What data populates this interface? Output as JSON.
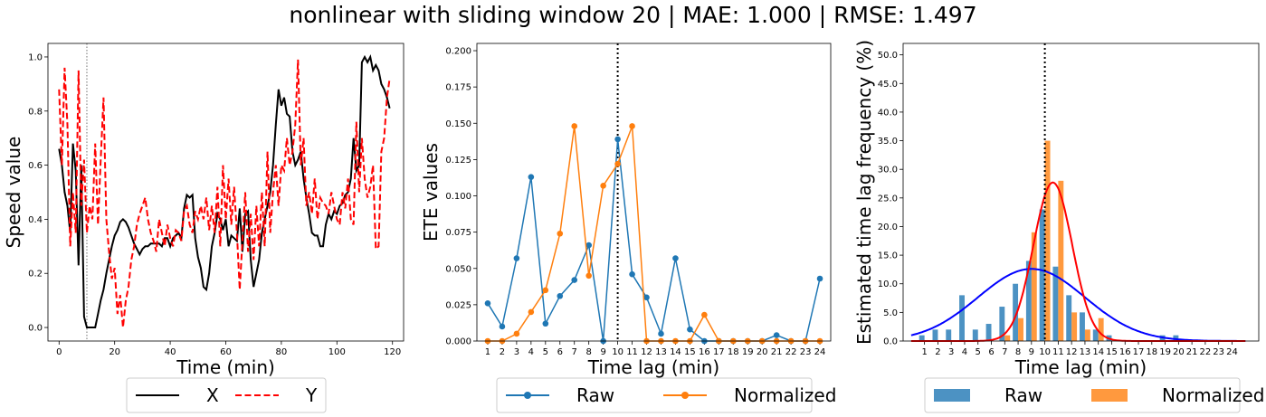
{
  "title": "nonlinear with sliding window 20 | MAE: 1.000 | RMSE: 1.497",
  "chart_data": [
    {
      "type": "line",
      "xlabel": "Time (min)",
      "ylabel": "Speed value",
      "xlim": [
        -4,
        124
      ],
      "ylim": [
        -0.05,
        1.05
      ],
      "xticks": [
        0,
        20,
        40,
        60,
        80,
        100,
        120
      ],
      "yticks": [
        0.0,
        0.2,
        0.4,
        0.6,
        0.8,
        1.0
      ],
      "vline": 10,
      "legend": {
        "placement": "bottom",
        "entries": [
          "X",
          "Y"
        ]
      },
      "series": [
        {
          "name": "X",
          "color": "#000000",
          "style": "solid",
          "x": [
            0,
            1,
            2,
            3,
            4,
            5,
            6,
            7,
            8,
            9,
            10,
            11,
            12,
            13,
            14,
            15,
            16,
            17,
            18,
            19,
            20,
            21,
            22,
            23,
            24,
            25,
            26,
            27,
            28,
            29,
            30,
            31,
            32,
            33,
            34,
            35,
            36,
            37,
            38,
            39,
            40,
            41,
            42,
            43,
            44,
            45,
            46,
            47,
            48,
            49,
            50,
            51,
            52,
            53,
            54,
            55,
            56,
            57,
            58,
            59,
            60,
            61,
            62,
            63,
            64,
            65,
            66,
            67,
            68,
            69,
            70,
            71,
            72,
            73,
            74,
            75,
            76,
            77,
            78,
            79,
            80,
            81,
            82,
            83,
            84,
            85,
            86,
            87,
            88,
            89,
            90,
            91,
            92,
            93,
            94,
            95,
            96,
            97,
            98,
            99,
            100,
            101,
            102,
            103,
            104,
            105,
            106,
            107,
            108,
            109,
            110,
            111,
            112,
            113,
            114,
            115,
            116,
            117,
            118,
            119
          ],
          "y": [
            0.66,
            0.6,
            0.5,
            0.45,
            0.35,
            0.68,
            0.58,
            0.23,
            0.6,
            0.04,
            0.0,
            0.0,
            0.0,
            0.0,
            0.05,
            0.1,
            0.14,
            0.2,
            0.25,
            0.3,
            0.34,
            0.36,
            0.39,
            0.4,
            0.39,
            0.37,
            0.34,
            0.31,
            0.29,
            0.27,
            0.29,
            0.3,
            0.3,
            0.31,
            0.31,
            0.31,
            0.31,
            0.3,
            0.33,
            0.33,
            0.3,
            0.33,
            0.34,
            0.35,
            0.33,
            0.44,
            0.49,
            0.48,
            0.49,
            0.33,
            0.26,
            0.22,
            0.15,
            0.14,
            0.2,
            0.3,
            0.35,
            0.42,
            0.4,
            0.36,
            0.4,
            0.3,
            0.34,
            0.33,
            0.32,
            0.44,
            0.28,
            0.42,
            0.43,
            0.25,
            0.15,
            0.2,
            0.25,
            0.35,
            0.4,
            0.45,
            0.5,
            0.6,
            0.75,
            0.88,
            0.82,
            0.85,
            0.79,
            0.78,
            0.65,
            0.6,
            0.62,
            0.65,
            0.55,
            0.48,
            0.42,
            0.35,
            0.34,
            0.34,
            0.3,
            0.3,
            0.38,
            0.42,
            0.4,
            0.43,
            0.42,
            0.45,
            0.46,
            0.49,
            0.5,
            0.55,
            0.7,
            0.58,
            0.6,
            0.98,
            1.0,
            0.98,
            1.0,
            0.95,
            0.97,
            0.95,
            0.9,
            0.88,
            0.85,
            0.81
          ]
        },
        {
          "name": "Y",
          "color": "#ff0000",
          "style": "dashed",
          "x": [
            0,
            1,
            2,
            3,
            4,
            5,
            6,
            7,
            8,
            9,
            10,
            11,
            12,
            13,
            14,
            15,
            16,
            17,
            18,
            19,
            20,
            21,
            22,
            23,
            24,
            25,
            26,
            27,
            28,
            29,
            30,
            31,
            32,
            33,
            34,
            35,
            36,
            37,
            38,
            39,
            40,
            41,
            42,
            43,
            44,
            45,
            46,
            47,
            48,
            49,
            50,
            51,
            52,
            53,
            54,
            55,
            56,
            57,
            58,
            59,
            60,
            61,
            62,
            63,
            64,
            65,
            66,
            67,
            68,
            69,
            70,
            71,
            72,
            73,
            74,
            75,
            76,
            77,
            78,
            79,
            80,
            81,
            82,
            83,
            84,
            85,
            86,
            87,
            88,
            89,
            90,
            91,
            92,
            93,
            94,
            95,
            96,
            97,
            98,
            99,
            100,
            101,
            102,
            103,
            104,
            105,
            106,
            107,
            108,
            109,
            110,
            111,
            112,
            113,
            114,
            115,
            116,
            117,
            118,
            119
          ],
          "y": [
            0.88,
            0.6,
            0.96,
            0.75,
            0.3,
            0.5,
            0.35,
            0.95,
            0.45,
            0.62,
            0.35,
            0.45,
            0.4,
            0.68,
            0.38,
            0.62,
            0.85,
            0.4,
            0.28,
            0.18,
            0.22,
            0.05,
            0.12,
            0.0,
            0.1,
            0.15,
            0.25,
            0.3,
            0.38,
            0.42,
            0.45,
            0.48,
            0.4,
            0.35,
            0.32,
            0.28,
            0.4,
            0.35,
            0.3,
            0.38,
            0.33,
            0.3,
            0.36,
            0.35,
            0.32,
            0.43,
            0.45,
            0.38,
            0.35,
            0.43,
            0.4,
            0.45,
            0.4,
            0.48,
            0.36,
            0.45,
            0.35,
            0.52,
            0.3,
            0.6,
            0.4,
            0.55,
            0.38,
            0.52,
            0.35,
            0.14,
            0.32,
            0.5,
            0.28,
            0.42,
            0.25,
            0.45,
            0.3,
            0.5,
            0.3,
            0.65,
            0.35,
            0.5,
            0.6,
            0.45,
            0.6,
            0.58,
            0.7,
            0.6,
            0.65,
            0.75,
            0.99,
            0.6,
            0.7,
            0.45,
            0.5,
            0.42,
            0.55,
            0.4,
            0.48,
            0.46,
            0.45,
            0.42,
            0.5,
            0.45,
            0.4,
            0.38,
            0.5,
            0.44,
            0.55,
            0.4,
            0.38,
            0.76,
            0.5,
            0.7,
            0.55,
            0.48,
            0.52,
            0.6,
            0.29,
            0.3,
            0.65,
            0.7,
            0.85,
            0.92
          ]
        }
      ]
    },
    {
      "type": "line",
      "xlabel": "Time lag (min)",
      "ylabel": "ETE values",
      "xlim": [
        0.25,
        24.75
      ],
      "ylim": [
        0.0,
        0.205
      ],
      "xticks": [
        1,
        2,
        3,
        4,
        5,
        6,
        7,
        8,
        9,
        10,
        11,
        12,
        13,
        14,
        15,
        16,
        17,
        18,
        19,
        20,
        21,
        22,
        23,
        24
      ],
      "yticks": [
        0.0,
        0.025,
        0.05,
        0.075,
        0.1,
        0.125,
        0.15,
        0.175,
        0.2
      ],
      "ytick_labels": [
        "0.000",
        "0.025",
        "0.050",
        "0.075",
        "0.100",
        "0.125",
        "0.150",
        "0.175",
        "0.200"
      ],
      "vline": 10,
      "legend": {
        "placement": "bottom",
        "entries": [
          "Raw",
          "Normalized"
        ]
      },
      "x": [
        1,
        2,
        3,
        4,
        5,
        6,
        7,
        8,
        9,
        10,
        11,
        12,
        13,
        14,
        15,
        16,
        17,
        18,
        19,
        20,
        21,
        22,
        23,
        24
      ],
      "series": [
        {
          "name": "Raw",
          "color": "#1f77b4",
          "values": [
            0.026,
            0.01,
            0.057,
            0.113,
            0.012,
            0.031,
            0.042,
            0.066,
            0.0,
            0.139,
            0.046,
            0.03,
            0.005,
            0.057,
            0.008,
            0.0,
            0.0,
            0.0,
            0.0,
            0.0,
            0.004,
            0.0,
            0.0,
            0.043
          ]
        },
        {
          "name": "Normalized",
          "color": "#ff7f0e",
          "values": [
            0.0,
            0.0,
            0.005,
            0.02,
            0.035,
            0.074,
            0.148,
            0.045,
            0.107,
            0.122,
            0.148,
            0.0,
            0.0,
            0.0,
            0.0,
            0.018,
            0.0,
            0.0,
            0.0,
            0.0,
            0.0,
            0.0,
            0.0,
            0.0
          ]
        }
      ]
    },
    {
      "type": "bar",
      "xlabel": "Time lag (min)",
      "ylabel": "Estimated time lag frequency (%)",
      "xlim": [
        -0.6,
        26.0
      ],
      "ylim": [
        0.0,
        52.0
      ],
      "xticks": [
        1,
        2,
        3,
        4,
        5,
        6,
        7,
        8,
        9,
        10,
        11,
        12,
        13,
        14,
        15,
        16,
        17,
        18,
        19,
        20,
        21,
        22,
        23,
        24
      ],
      "yticks": [
        0.0,
        5.0,
        10.0,
        15.0,
        20.0,
        25.0,
        30.0,
        35.0,
        40.0,
        45.0,
        50.0
      ],
      "ytick_labels": [
        "0.0",
        "5.0",
        "10.0",
        "15.0",
        "20.0",
        "25.0",
        "30.0",
        "35.0",
        "40.0",
        "45.0",
        "50.0"
      ],
      "vline": 10,
      "legend": {
        "placement": "bottom",
        "entries": [
          "Raw",
          "Normalized"
        ]
      },
      "categories": [
        1,
        2,
        3,
        4,
        5,
        6,
        7,
        8,
        9,
        10,
        11,
        12,
        13,
        14,
        15,
        16,
        17,
        18,
        19,
        20,
        21,
        22,
        23,
        24
      ],
      "series": [
        {
          "name": "Raw",
          "color": "#1f77b4",
          "values": [
            1,
            2,
            2,
            8,
            2,
            3,
            6,
            10,
            14,
            23,
            13,
            8,
            5,
            2,
            1,
            0,
            0,
            0,
            1,
            1,
            0,
            0,
            0,
            0
          ]
        },
        {
          "name": "Normalized",
          "color": "#ff7f0e",
          "values": [
            0,
            0,
            0,
            0,
            0,
            0,
            1,
            4,
            19,
            35,
            28,
            5,
            2,
            4,
            0,
            0,
            0,
            0,
            0,
            0,
            0,
            0,
            0,
            0
          ]
        }
      ],
      "fit_curves": [
        {
          "color": "#0000ff",
          "mean": 9.0,
          "sd": 4.0,
          "peak": 12.6,
          "x_range": [
            0,
            25
          ]
        },
        {
          "color": "#ff0000",
          "mean": 10.6,
          "sd": 1.45,
          "peak": 27.7,
          "x_range": [
            0,
            25
          ]
        }
      ]
    }
  ]
}
